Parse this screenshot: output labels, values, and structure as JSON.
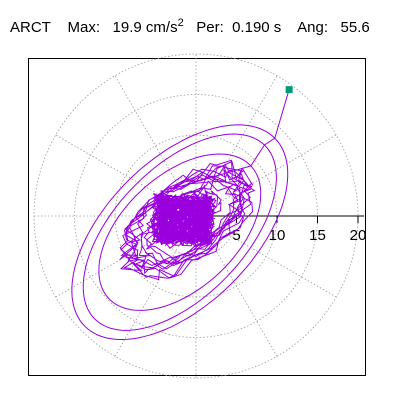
{
  "header": {
    "station": "ARCT",
    "max_label": "Max:",
    "max_value": "19.9",
    "max_unit": "cm/s",
    "max_exp": "2",
    "per_label": "Per:",
    "per_value": "0.190 s",
    "ang_label": "Ang:",
    "ang_value": "55.6"
  },
  "chart_data": {
    "type": "line",
    "title": "",
    "radial_ticks": [
      "5",
      "10",
      "15",
      "20"
    ],
    "radial_range": [
      0,
      20
    ],
    "grid": true,
    "grid_style": "dotted polar rings and spokes",
    "trace_color": "#9900dd",
    "marker_color": "#009977",
    "end_point": {
      "x": 11.5,
      "y": 15.6
    }
  }
}
